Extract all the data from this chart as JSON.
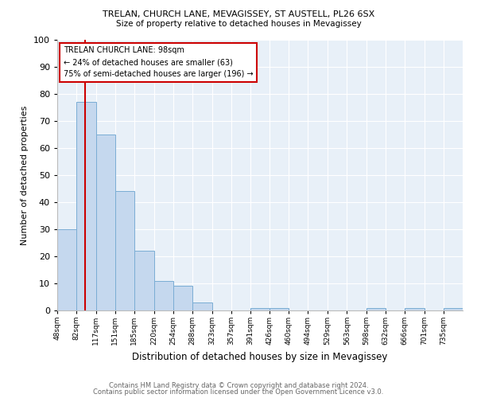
{
  "title1": "TRELAN, CHURCH LANE, MEVAGISSEY, ST AUSTELL, PL26 6SX",
  "title2": "Size of property relative to detached houses in Mevagissey",
  "xlabel": "Distribution of detached houses by size in Mevagissey",
  "ylabel": "Number of detached properties",
  "footnote1": "Contains HM Land Registry data © Crown copyright and database right 2024.",
  "footnote2": "Contains public sector information licensed under the Open Government Licence v3.0.",
  "bin_edges": [
    48,
    82,
    117,
    151,
    185,
    220,
    254,
    288,
    323,
    357,
    391,
    426,
    460,
    494,
    529,
    563,
    598,
    632,
    666,
    701,
    735
  ],
  "bar_heights": [
    30,
    77,
    65,
    44,
    22,
    11,
    9,
    3,
    0,
    0,
    1,
    1,
    0,
    0,
    0,
    0,
    1,
    0,
    1,
    0,
    1
  ],
  "bar_color": "#c5d8ee",
  "bar_edgecolor": "#7aadd4",
  "redline_x": 98,
  "redline_color": "#cc0000",
  "annotation_title": "TRELAN CHURCH LANE: 98sqm",
  "annotation_line1": "← 24% of detached houses are smaller (63)",
  "annotation_line2": "75% of semi-detached houses are larger (196) →",
  "annotation_box_facecolor": "#ffffff",
  "annotation_box_edgecolor": "#cc0000",
  "ylim": [
    0,
    100
  ],
  "xlim_left": 48,
  "xlim_right": 769,
  "plot_background": "#e8f0f8",
  "grid_color": "#ffffff",
  "footnote_color": "#666666"
}
